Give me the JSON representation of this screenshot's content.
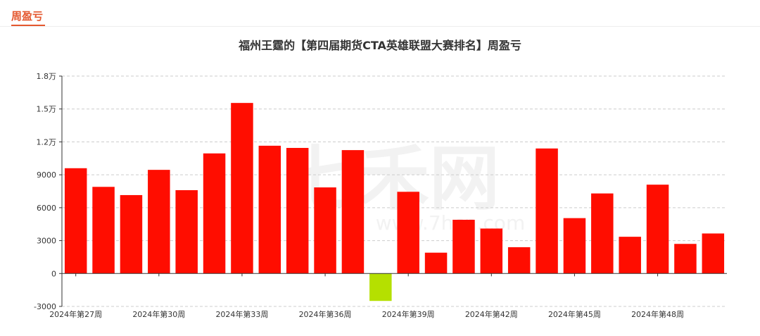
{
  "panel": {
    "title": "周盈亏"
  },
  "watermark": {
    "text": "七禾网",
    "url_text": "www.7hcn.com"
  },
  "colors": {
    "positive": "#ff0d00",
    "negative": "#b5e000",
    "accent": "#e4572e",
    "grid": "#cccccc",
    "axis": "#333333"
  },
  "chart_data": {
    "type": "bar",
    "title": "福州王霆的【第四届期货CTA英雄联盟大赛排名】周盈亏",
    "ylim": [
      -3000,
      18000
    ],
    "yticks": [
      -3000,
      0,
      3000,
      6000,
      9000,
      12000,
      15000,
      18000
    ],
    "ytick_labels": [
      "-3000",
      "0",
      "3000",
      "6000",
      "9000",
      "1.2万",
      "1.5万",
      "1.8万"
    ],
    "categories": [
      "2024年第27周",
      "2024年第28周",
      "2024年第29周",
      "2024年第30周",
      "2024年第31周",
      "2024年第32周",
      "2024年第33周",
      "2024年第34周",
      "2024年第35周",
      "2024年第36周",
      "2024年第37周",
      "2024年第38周",
      "2024年第39周",
      "2024年第40周",
      "2024年第41周",
      "2024年第42周",
      "2024年第43周",
      "2024年第44周",
      "2024年第45周",
      "2024年第46周",
      "2024年第47周",
      "2024年第48周",
      "2024年第49周",
      "2024年第50周"
    ],
    "xtick_labels_shown": [
      "2024年第27周",
      "2024年第30周",
      "2024年第33周",
      "2024年第36周",
      "2024年第39周",
      "2024年第42周",
      "2024年第45周",
      "2024年第48周"
    ],
    "values": [
      9600,
      7900,
      7150,
      9450,
      7600,
      10950,
      15550,
      11650,
      11450,
      7850,
      11250,
      -2500,
      7450,
      1900,
      4900,
      4100,
      2400,
      11400,
      5050,
      7300,
      3350,
      8100,
      2700,
      3650
    ],
    "grid": "horizontal-dashed",
    "legend": "none"
  }
}
